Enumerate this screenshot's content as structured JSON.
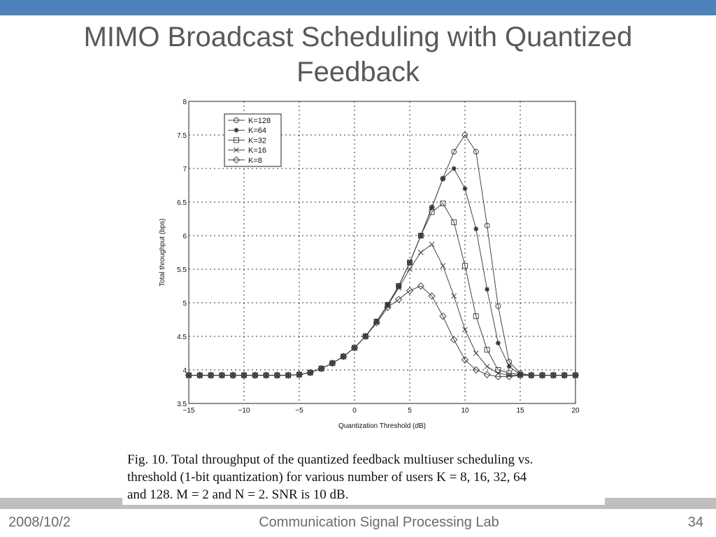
{
  "slide": {
    "title_line1": "MIMO Broadcast Scheduling with Quantized",
    "title_line2": "Feedback",
    "caption_line1": "Fig. 10.   Total throughput of the quantized feedback multiuser scheduling vs.",
    "caption_line2": "threshold (1-bit quantization) for various number of users K = 8, 16, 32, 64",
    "caption_line3": "and 128. M = 2 and N = 2. SNR is 10 dB.",
    "footer_date": "2008/10/2",
    "footer_lab": "Communication Signal Processing Lab",
    "page_number": "34",
    "accent_color": "#4f81bd"
  },
  "chart_data": {
    "type": "line",
    "title": "",
    "xlabel": "Quantization Threshold (dB)",
    "ylabel": "Total throughput (bps)",
    "xlim": [
      -15,
      20
    ],
    "ylim": [
      3.5,
      8
    ],
    "xticks": [
      -15,
      -10,
      -5,
      0,
      5,
      10,
      15,
      20
    ],
    "xtick_labels": [
      "−15",
      "−10",
      "−5",
      "0",
      "5",
      "10",
      "15",
      "20"
    ],
    "yticks": [
      3.5,
      4,
      4.5,
      5,
      5.5,
      6,
      6.5,
      7,
      7.5,
      8
    ],
    "ytick_labels": [
      "3.5",
      "4",
      "4.5",
      "5",
      "5.5",
      "6",
      "6.5",
      "7",
      "7.5",
      "8"
    ],
    "grid": true,
    "legend_position": "top-left",
    "x": [
      -15,
      -14,
      -13,
      -12,
      -11,
      -10,
      -9,
      -8,
      -7,
      -6,
      -5,
      -4,
      -3,
      -2,
      -1,
      0,
      1,
      2,
      3,
      4,
      5,
      6,
      7,
      8,
      9,
      10,
      11,
      12,
      13,
      14,
      15,
      16,
      17,
      18,
      19,
      20
    ],
    "series": [
      {
        "name": "K=128",
        "marker": "circle",
        "values": [
          3.92,
          3.92,
          3.92,
          3.92,
          3.92,
          3.92,
          3.92,
          3.92,
          3.92,
          3.92,
          3.93,
          3.96,
          4.02,
          4.1,
          4.2,
          4.33,
          4.5,
          4.72,
          4.97,
          5.25,
          5.6,
          6.0,
          6.42,
          6.85,
          7.25,
          7.5,
          7.25,
          6.15,
          4.95,
          4.12,
          3.95,
          3.92,
          3.92,
          3.92,
          3.92,
          3.92
        ]
      },
      {
        "name": "K=64",
        "marker": "star",
        "values": [
          3.92,
          3.92,
          3.92,
          3.92,
          3.92,
          3.92,
          3.92,
          3.92,
          3.92,
          3.92,
          3.93,
          3.96,
          4.02,
          4.1,
          4.2,
          4.33,
          4.5,
          4.72,
          4.97,
          5.25,
          5.6,
          6.0,
          6.42,
          6.85,
          7.0,
          6.7,
          6.1,
          5.2,
          4.4,
          4.05,
          3.93,
          3.92,
          3.92,
          3.92,
          3.92,
          3.92
        ]
      },
      {
        "name": "K=32",
        "marker": "square",
        "values": [
          3.92,
          3.92,
          3.92,
          3.92,
          3.92,
          3.92,
          3.92,
          3.92,
          3.92,
          3.92,
          3.93,
          3.96,
          4.02,
          4.1,
          4.2,
          4.33,
          4.5,
          4.72,
          4.97,
          5.25,
          5.6,
          6.0,
          6.35,
          6.48,
          6.2,
          5.55,
          4.8,
          4.3,
          4.0,
          3.95,
          3.93,
          3.92,
          3.92,
          3.92,
          3.92,
          3.92
        ]
      },
      {
        "name": "K=16",
        "marker": "x",
        "values": [
          3.92,
          3.92,
          3.92,
          3.92,
          3.92,
          3.92,
          3.92,
          3.92,
          3.92,
          3.92,
          3.93,
          3.96,
          4.02,
          4.1,
          4.2,
          4.33,
          4.5,
          4.72,
          4.96,
          5.22,
          5.5,
          5.75,
          5.87,
          5.55,
          5.1,
          4.6,
          4.25,
          4.05,
          3.95,
          3.92,
          3.92,
          3.92,
          3.92,
          3.92,
          3.92,
          3.92
        ]
      },
      {
        "name": "K=8",
        "marker": "diamond",
        "values": [
          3.92,
          3.92,
          3.92,
          3.92,
          3.92,
          3.92,
          3.92,
          3.92,
          3.92,
          3.92,
          3.93,
          3.96,
          4.02,
          4.1,
          4.2,
          4.33,
          4.5,
          4.7,
          4.93,
          5.05,
          5.18,
          5.25,
          5.1,
          4.8,
          4.45,
          4.15,
          4.0,
          3.93,
          3.9,
          3.9,
          3.92,
          3.92,
          3.92,
          3.92,
          3.92,
          3.92
        ]
      }
    ]
  }
}
